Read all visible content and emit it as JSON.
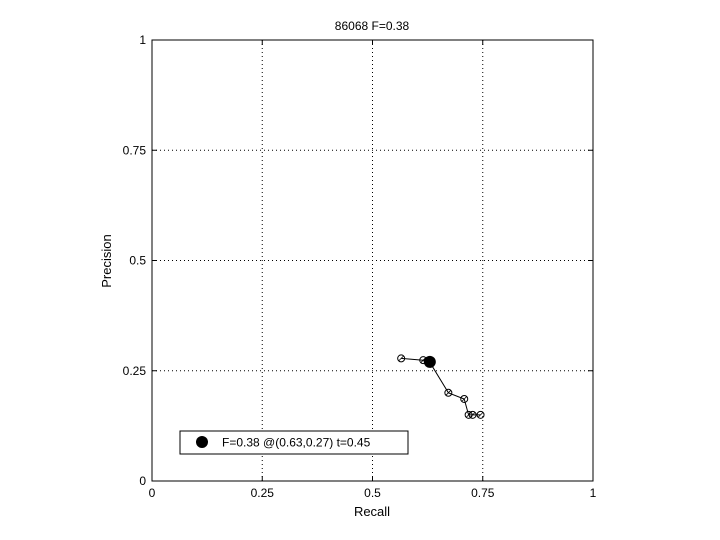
{
  "chart_data": {
    "type": "line",
    "title": "86068 F=0.38",
    "xlabel": "Recall",
    "ylabel": "Precision",
    "xlim": [
      0,
      1
    ],
    "ylim": [
      0,
      1
    ],
    "grid": true,
    "xticks": [
      "0",
      "0.25",
      "0.5",
      "0.75",
      "1"
    ],
    "yticks": [
      "0",
      "0.25",
      "0.5",
      "0.75",
      "1"
    ],
    "series": [
      {
        "x": [
          0.565,
          0.615,
          0.625,
          0.628,
          0.632,
          0.672,
          0.708,
          0.718,
          0.727,
          0.745
        ],
        "y": [
          0.278,
          0.274,
          0.272,
          0.27,
          0.266,
          0.2,
          0.186,
          0.15,
          0.15,
          0.15
        ]
      }
    ],
    "best_point": {
      "x": 0.63,
      "y": 0.27
    },
    "legend": {
      "label": "F=0.38 @(0.63,0.27) t=0.45",
      "placement": "bottom-left"
    }
  },
  "colors": {
    "line": "#000000",
    "grid": "#000000",
    "background": "#ffffff"
  }
}
